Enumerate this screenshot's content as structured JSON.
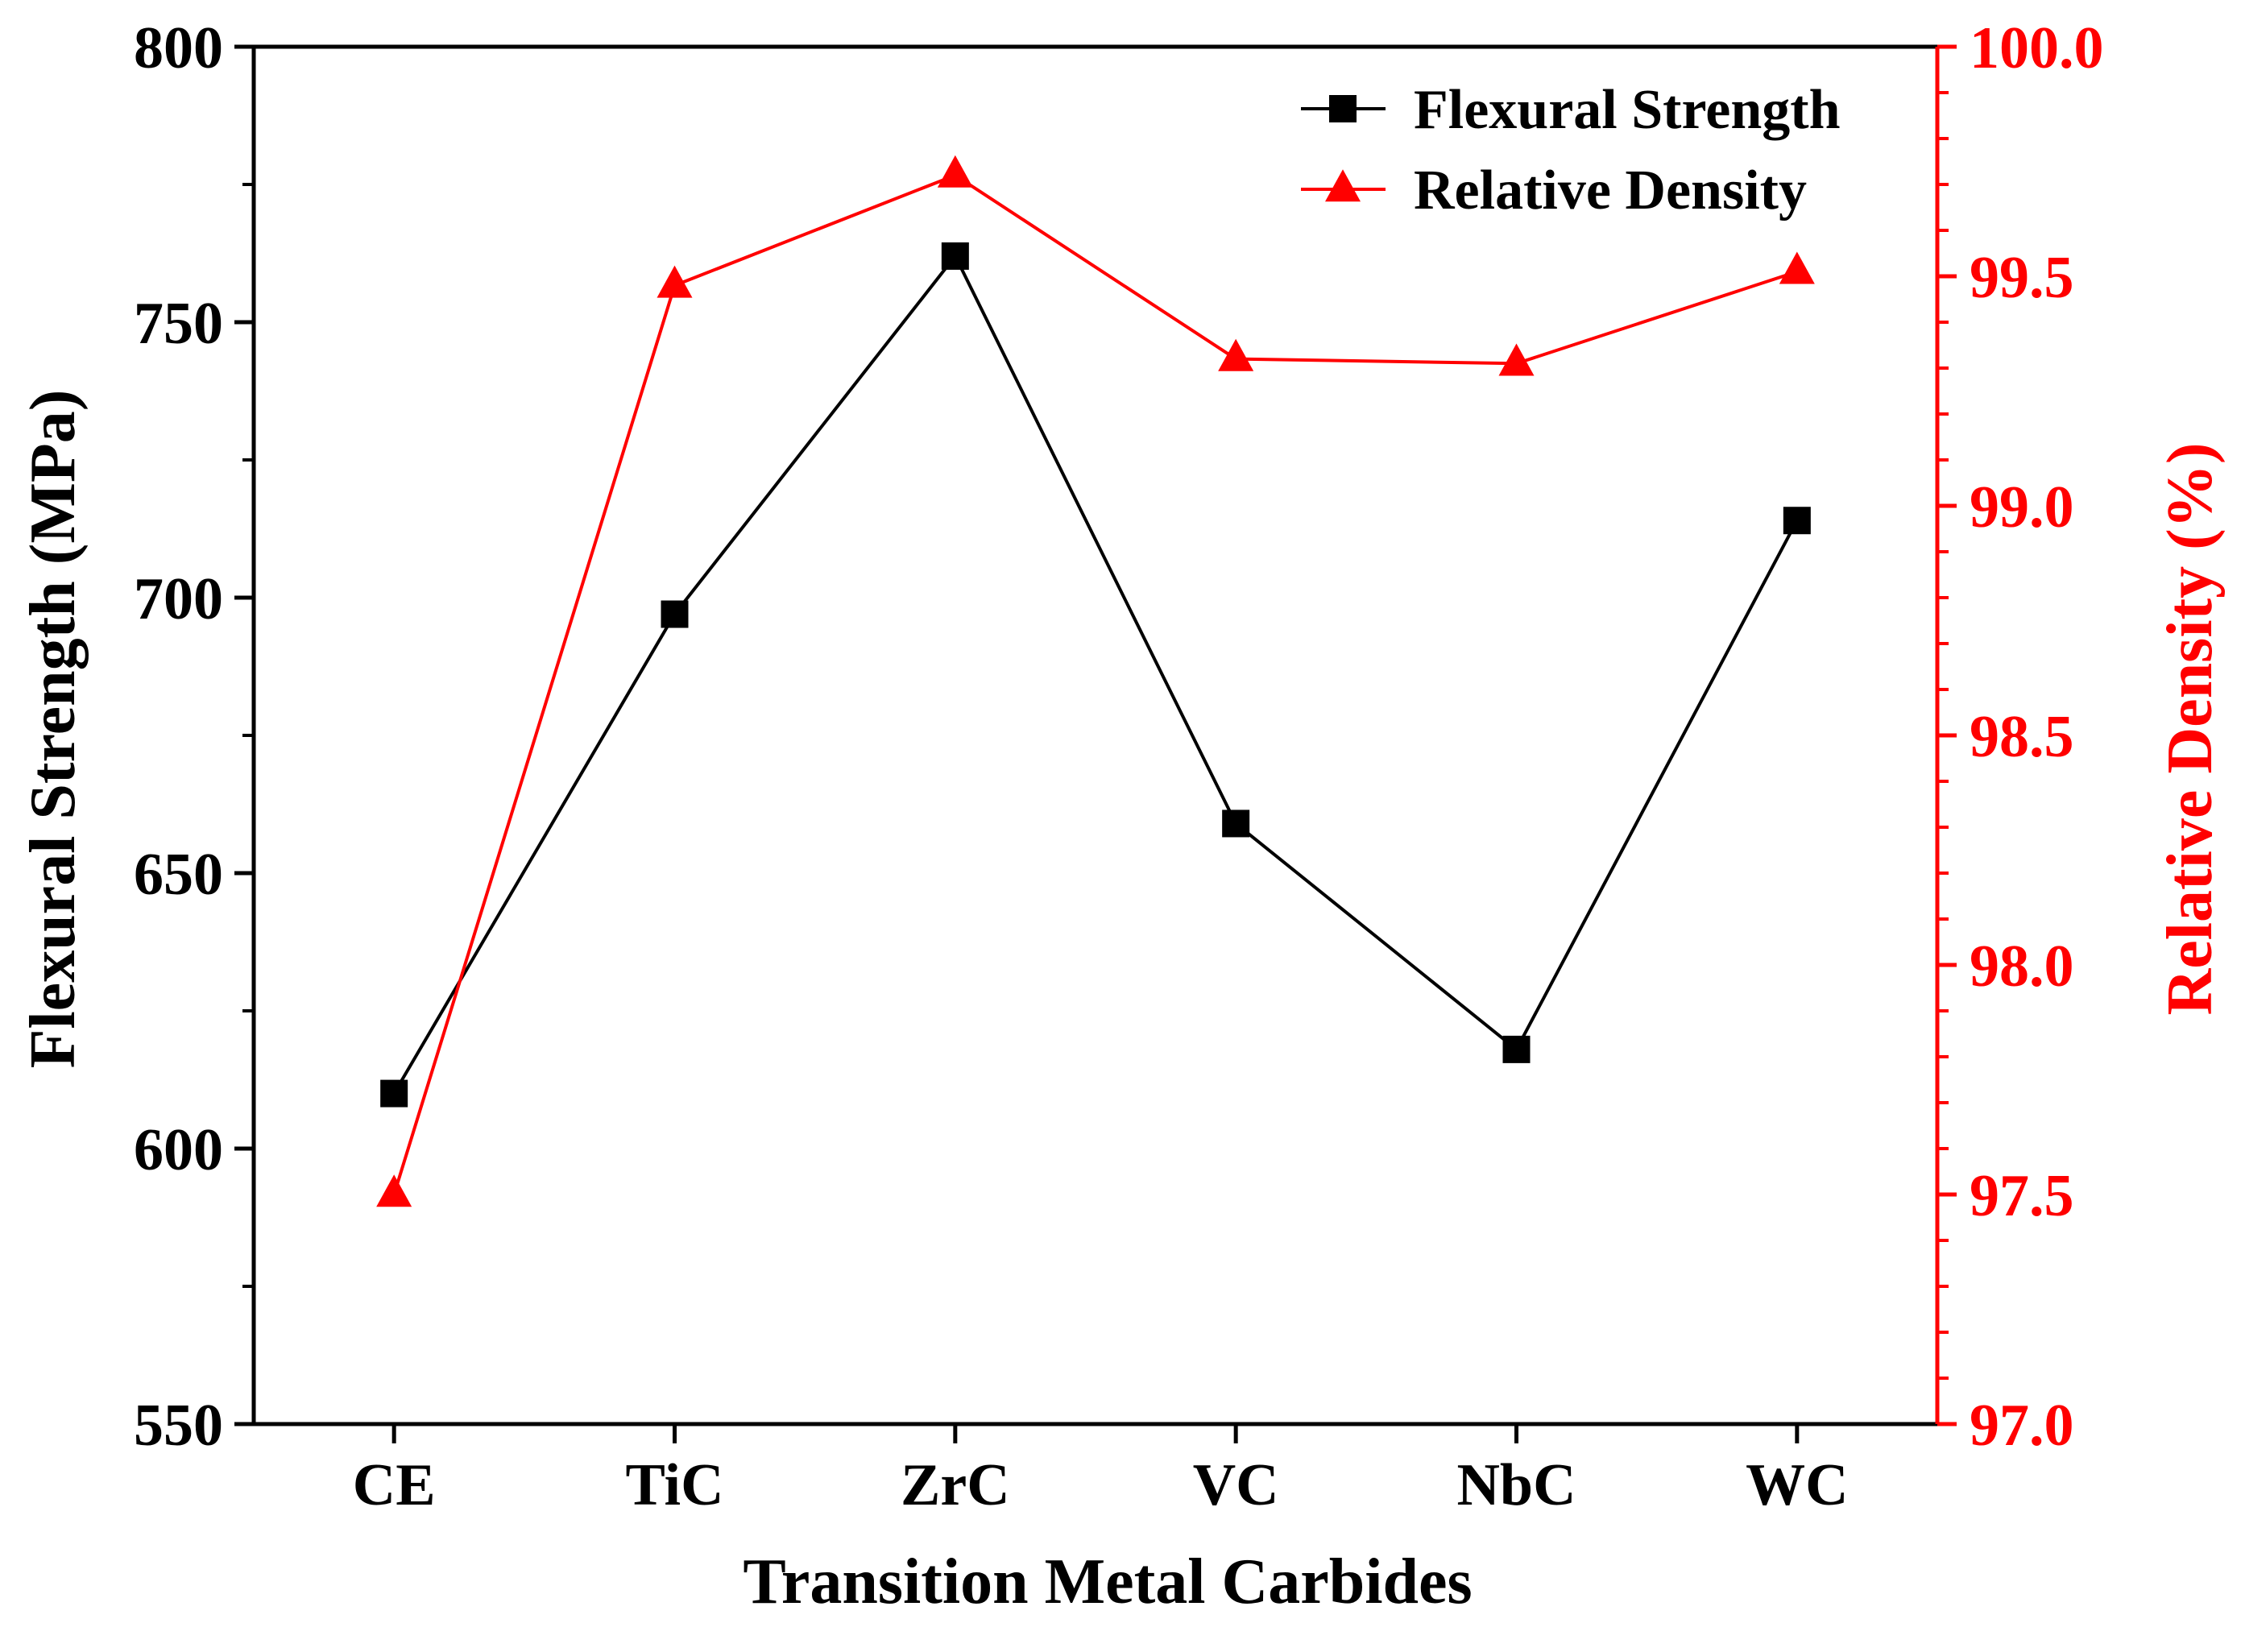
{
  "chart_data": {
    "type": "line",
    "xlabel": "Transition Metal Carbides",
    "categories": [
      "CE",
      "TiC",
      "ZrC",
      "VC",
      "NbC",
      "WC"
    ],
    "y_left": {
      "label": "Flexural Strength (MPa)",
      "range": [
        550,
        800
      ],
      "ticks": [
        550,
        600,
        650,
        700,
        750,
        800
      ],
      "tick_labels": [
        "550",
        "600",
        "650",
        "700",
        "750",
        "800"
      ],
      "color": "#000000"
    },
    "y_right": {
      "label": "Relative Density (%)",
      "range": [
        97.0,
        100.0
      ],
      "ticks": [
        97.0,
        97.5,
        98.0,
        98.5,
        99.0,
        99.5,
        100.0
      ],
      "tick_labels": [
        "97.0",
        "97.5",
        "98.0",
        "98.5",
        "99.0",
        "99.5",
        "100.0"
      ],
      "color": "#ff0000"
    },
    "series": [
      {
        "name": "Flexural Strength",
        "axis": "left",
        "marker": "square",
        "color": "#000000",
        "values": [
          610,
          697,
          762,
          659,
          618,
          714
        ]
      },
      {
        "name": "Relative Density",
        "axis": "right",
        "marker": "triangle",
        "color": "#ff0000",
        "values": [
          97.5,
          99.48,
          99.72,
          99.32,
          99.31,
          99.51
        ]
      }
    ],
    "legend_position": "top-right",
    "grid": false
  }
}
